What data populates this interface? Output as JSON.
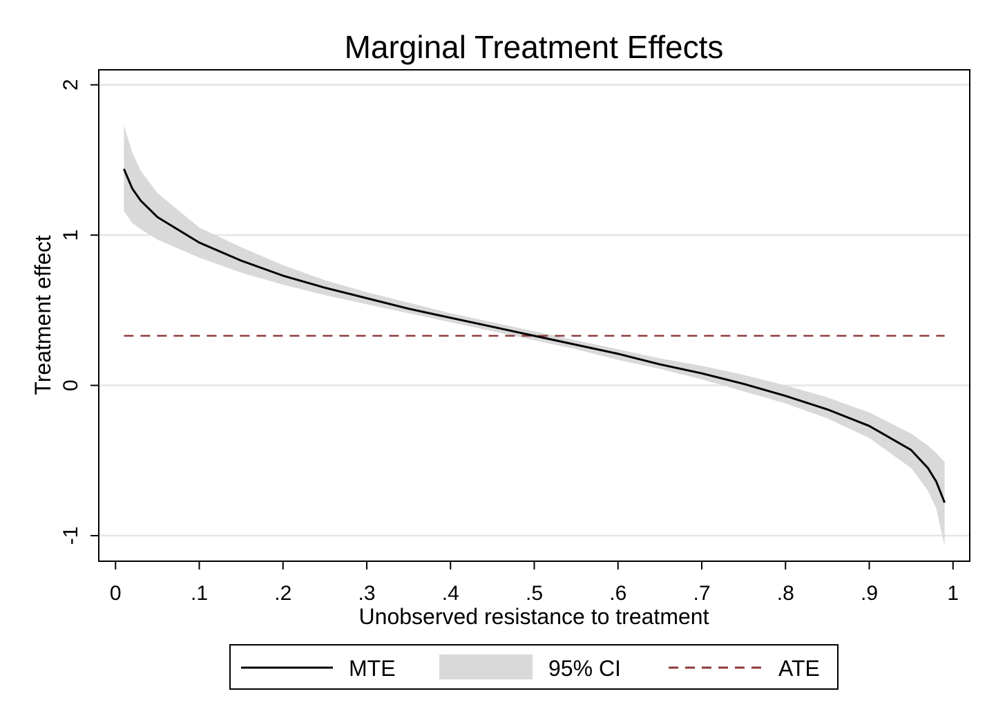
{
  "chart_data": {
    "type": "line",
    "title": "Marginal Treatment Effects",
    "xlabel": "Unobserved resistance to treatment",
    "ylabel": "Treatment effect",
    "xlim": [
      -0.02,
      1.02
    ],
    "ylim": [
      -1.17,
      2.1
    ],
    "x_ticks": [
      {
        "value": 0,
        "label": "0"
      },
      {
        "value": 0.1,
        "label": ".1"
      },
      {
        "value": 0.2,
        "label": ".2"
      },
      {
        "value": 0.3,
        "label": ".3"
      },
      {
        "value": 0.4,
        "label": ".4"
      },
      {
        "value": 0.5,
        "label": ".5"
      },
      {
        "value": 0.6,
        "label": ".6"
      },
      {
        "value": 0.7,
        "label": ".7"
      },
      {
        "value": 0.8,
        "label": ".8"
      },
      {
        "value": 0.9,
        "label": ".9"
      },
      {
        "value": 1,
        "label": "1"
      }
    ],
    "y_ticks": [
      {
        "value": -1,
        "label": "-1"
      },
      {
        "value": 0,
        "label": "0"
      },
      {
        "value": 1,
        "label": "1"
      },
      {
        "value": 2,
        "label": "2"
      }
    ],
    "grid": "horizontal",
    "legend_position": "bottom",
    "x": [
      0.01,
      0.02,
      0.03,
      0.05,
      0.1,
      0.15,
      0.2,
      0.25,
      0.3,
      0.35,
      0.4,
      0.45,
      0.5,
      0.55,
      0.6,
      0.65,
      0.7,
      0.75,
      0.8,
      0.85,
      0.9,
      0.95,
      0.97,
      0.98,
      0.99
    ],
    "series": [
      {
        "name": "MTE",
        "style": "line",
        "color": "#000000",
        "y": [
          1.44,
          1.31,
          1.23,
          1.12,
          0.95,
          0.83,
          0.73,
          0.65,
          0.58,
          0.51,
          0.45,
          0.39,
          0.33,
          0.27,
          0.21,
          0.14,
          0.08,
          0.01,
          -0.07,
          -0.16,
          -0.27,
          -0.43,
          -0.55,
          -0.64,
          -0.78
        ]
      },
      {
        "name": "95% CI",
        "style": "band",
        "color": "#d9d9d9",
        "lower": [
          1.16,
          1.08,
          1.04,
          0.97,
          0.85,
          0.75,
          0.67,
          0.6,
          0.54,
          0.48,
          0.42,
          0.36,
          0.3,
          0.24,
          0.17,
          0.11,
          0.04,
          -0.04,
          -0.12,
          -0.22,
          -0.35,
          -0.55,
          -0.7,
          -0.82,
          -1.07
        ],
        "upper": [
          1.73,
          1.55,
          1.43,
          1.28,
          1.05,
          0.92,
          0.8,
          0.7,
          0.62,
          0.55,
          0.48,
          0.42,
          0.36,
          0.3,
          0.24,
          0.18,
          0.13,
          0.07,
          0.0,
          -0.08,
          -0.18,
          -0.32,
          -0.4,
          -0.45,
          -0.51
        ]
      },
      {
        "name": "ATE",
        "style": "dashed",
        "color": "#8c3a3a",
        "y_constant": 0.33,
        "x_range": [
          0.01,
          0.99
        ]
      }
    ],
    "legend": [
      {
        "label": "MTE",
        "key": "line"
      },
      {
        "label": "95% CI",
        "key": "band"
      },
      {
        "label": "ATE",
        "key": "dashed"
      }
    ]
  },
  "colors": {
    "grid": "#e5e5e5",
    "axis": "#000000",
    "band": "#d9d9d9",
    "mte": "#000000",
    "ate": "#8c3a3a"
  }
}
